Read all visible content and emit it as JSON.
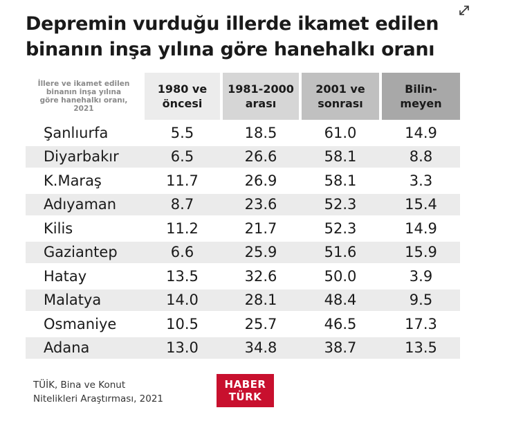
{
  "header": {
    "title": "Depremin vurduğu illerde ikamet edilen\nbinanın inşa yılına göre hanehalkı oranı"
  },
  "table": {
    "corner": "İllere ve ikamet edilen\nbinanın inşa yılına\ngöre hanehalkı oranı,\n2021",
    "columns": [
      "1980 ve\nöncesi",
      "1981-2000\narası",
      "2001 ve\nsonrası",
      "Bilin-\nmeyen"
    ],
    "rows": [
      [
        "Şanlıurfa",
        "5.5",
        "18.5",
        "61.0",
        "14.9"
      ],
      [
        "Diyarbakır",
        "6.5",
        "26.6",
        "58.1",
        "8.8"
      ],
      [
        "K.Maraş",
        "11.7",
        "26.9",
        "58.1",
        "3.3"
      ],
      [
        "Adıyaman",
        "8.7",
        "23.6",
        "52.3",
        "15.4"
      ],
      [
        "Kilis",
        "11.2",
        "21.7",
        "52.3",
        "14.9"
      ],
      [
        "Gaziantep",
        "6.6",
        "25.9",
        "51.6",
        "15.9"
      ],
      [
        "Hatay",
        "13.5",
        "32.6",
        "50.0",
        "3.9"
      ],
      [
        "Malatya",
        "14.0",
        "28.1",
        "48.4",
        "9.5"
      ],
      [
        "Osmaniye",
        "10.5",
        "25.7",
        "46.5",
        "17.3"
      ],
      [
        "Adana",
        "13.0",
        "34.8",
        "38.7",
        "13.5"
      ]
    ]
  },
  "footer": {
    "source": "TÜİK, Bina ve Konut\nNitelikleri Araştırması, 2021",
    "logo": [
      "HABER",
      "TÜRK"
    ]
  }
}
